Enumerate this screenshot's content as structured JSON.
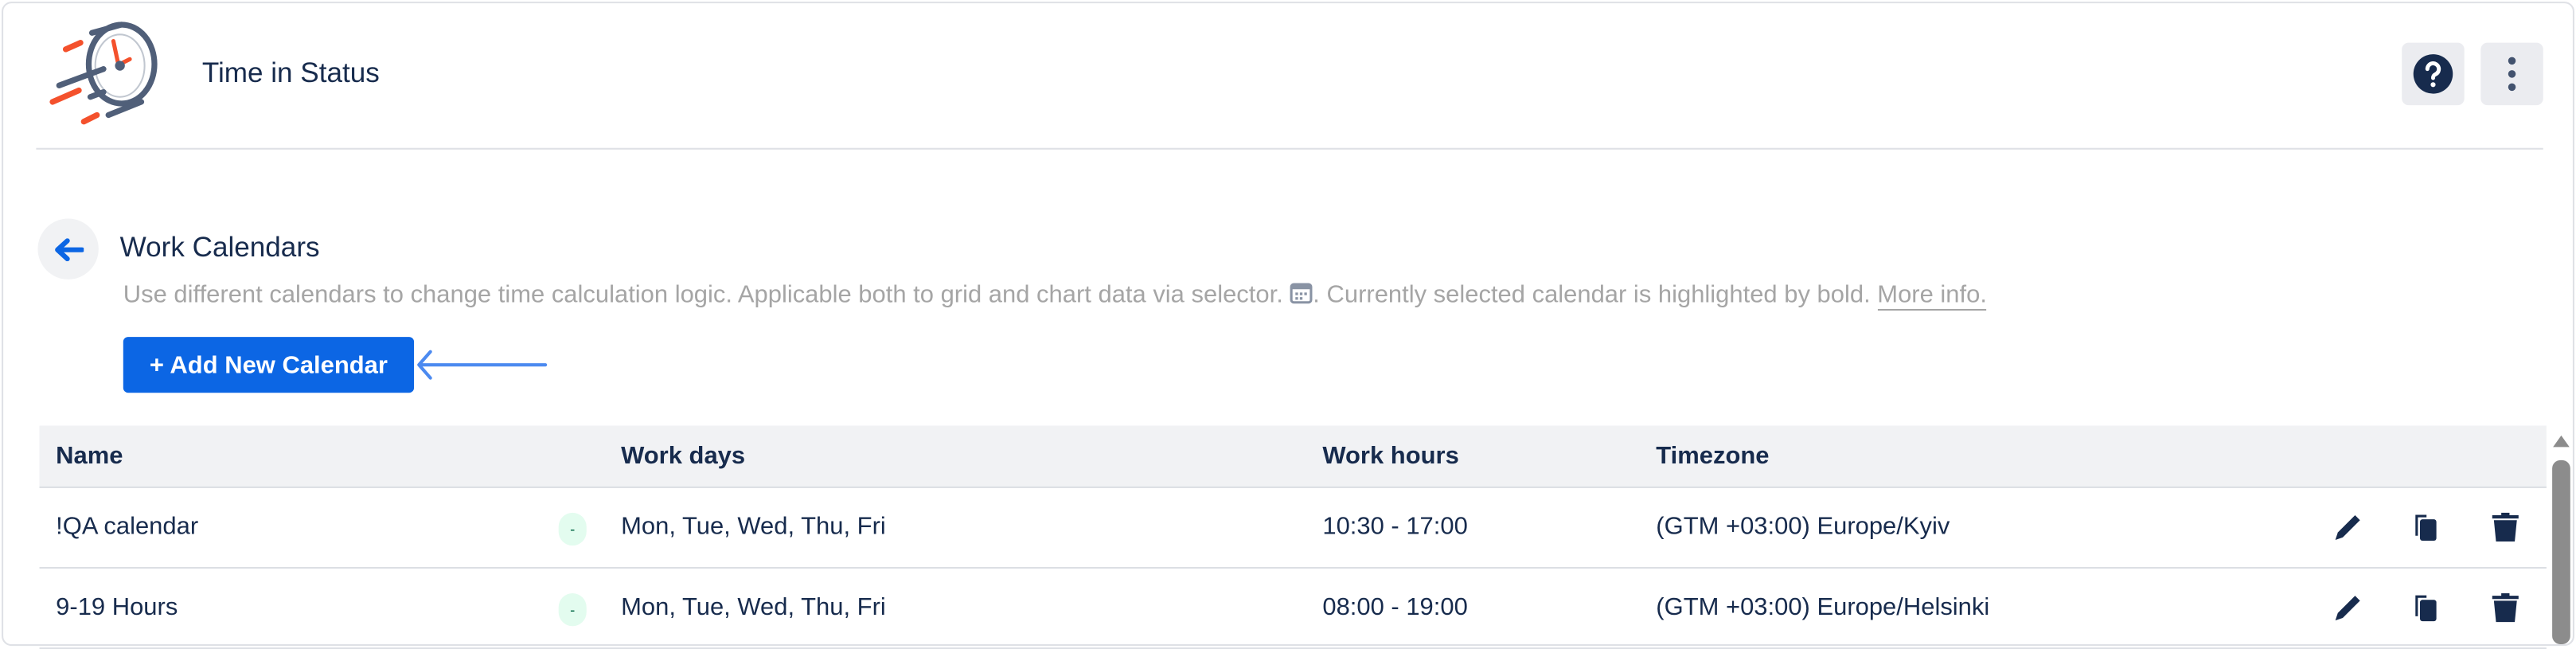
{
  "header": {
    "app_title": "Time in Status",
    "logo_icon": "speeding-clock-logo",
    "help_icon": "help-circle-icon",
    "more_icon": "more-vertical-icon"
  },
  "section": {
    "title": "Work Calendars",
    "description_before": "Use different calendars to change time calculation logic. Applicable both to grid and chart data via selector. ",
    "description_after": ". Currently selected calendar is highlighted by bold. ",
    "more_info_link": "More info.",
    "add_button": "+ Add New Calendar"
  },
  "table": {
    "columns": [
      "Name",
      "Work days",
      "Work hours",
      "Timezone"
    ],
    "rows": [
      {
        "name": "!QA calendar",
        "badge": "-",
        "work_days": "Mon, Tue, Wed, Thu, Fri",
        "work_hours": "10:30 - 17:00",
        "timezone": "(GTM +03:00) Europe/Kyiv"
      },
      {
        "name": "9-19 Hours",
        "badge": "-",
        "work_days": "Mon, Tue, Wed, Thu, Fri",
        "work_hours": "08:00 - 19:00",
        "timezone": "(GTM +03:00) Europe/Helsinki"
      }
    ]
  },
  "colors": {
    "primary": "#0c66e4",
    "text": "#172b4d",
    "muted": "#a5a5a5",
    "logo_orange": "#f4512c",
    "logo_slate": "#505f79",
    "annotation_arrow": "#4c8af0"
  }
}
